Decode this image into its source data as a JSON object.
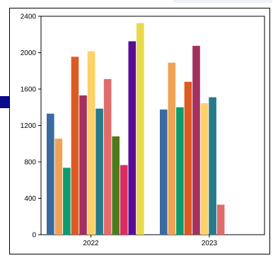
{
  "chart_data": {
    "type": "bar",
    "categories": [
      "2022",
      "2023"
    ],
    "ylim": [
      0,
      2400
    ],
    "yticks": [
      0,
      400,
      800,
      1200,
      1600,
      2000,
      2400
    ],
    "grid": false,
    "series_colors": [
      "#3a6aa0",
      "#f0a254",
      "#0d9b6e",
      "#dd5a22",
      "#a3305f",
      "#ffd166",
      "#277a8a",
      "#e06c6a",
      "#4d7a1a",
      "#d92d5f",
      "#5a0c96",
      "#e8d94a"
    ],
    "groups": [
      {
        "category": "2022",
        "values": [
          1330,
          1055,
          735,
          1955,
          1530,
          2015,
          1385,
          1710,
          1080,
          765,
          2125,
          2325
        ]
      },
      {
        "category": "2023",
        "values": [
          1375,
          1890,
          1400,
          1680,
          2075,
          1445,
          1510,
          330
        ]
      }
    ]
  }
}
